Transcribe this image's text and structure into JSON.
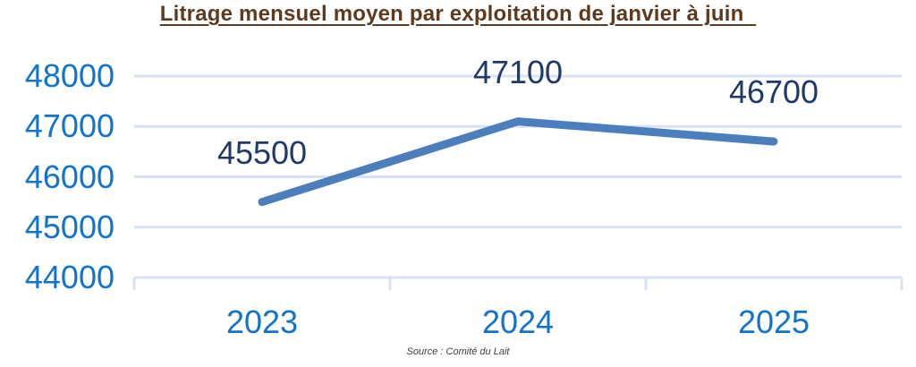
{
  "title": "Litrage mensuel moyen par exploitation de janvier à juin",
  "source": "Source : Comité du Lait",
  "chart_data": {
    "type": "line",
    "title": "Litrage mensuel moyen par exploitation de janvier à juin",
    "categories": [
      "2023",
      "2024",
      "2025"
    ],
    "values": [
      45500,
      47100,
      46700
    ],
    "data_labels": [
      "45500",
      "47100",
      "46700"
    ],
    "ylim": [
      44000,
      48000
    ],
    "yticks": [
      44000,
      45000,
      46000,
      47000,
      48000
    ],
    "grid": true,
    "legend": "none",
    "source": "Source : Comité du Lait",
    "colors": {
      "line": "#4A7EBD",
      "axis_labels": "#1273CB",
      "data_labels": "#1F3A68",
      "gridline": "#D9E2F3",
      "title": "#5E3A1E",
      "source_text": "#3D3D3D"
    }
  }
}
